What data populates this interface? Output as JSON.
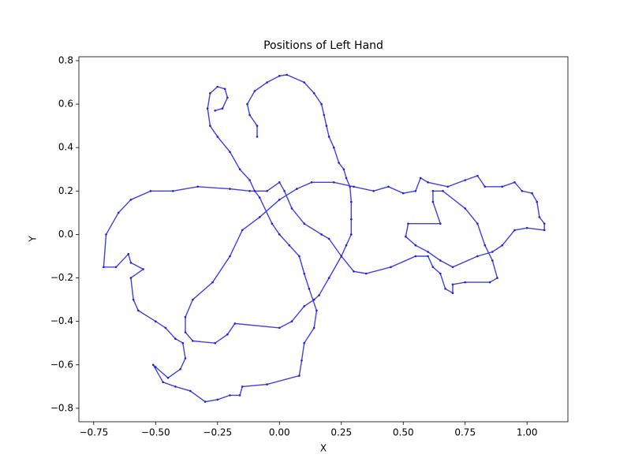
{
  "chart_data": {
    "type": "line",
    "title": "Positions of Left Hand",
    "x_label": "X",
    "y_label": "Y",
    "xlim": [
      -0.81,
      1.165
    ],
    "ylim": [
      -0.862,
      0.818
    ],
    "xticks": [
      {
        "value": -0.75,
        "label": "−0.75"
      },
      {
        "value": -0.5,
        "label": "−0.50"
      },
      {
        "value": -0.25,
        "label": "−0.25"
      },
      {
        "value": 0,
        "label": "0.00"
      },
      {
        "value": 0.25,
        "label": "0.25"
      },
      {
        "value": 0.5,
        "label": "0.50"
      },
      {
        "value": 0.75,
        "label": "0.75"
      },
      {
        "value": 1,
        "label": "1.00"
      }
    ],
    "yticks": [
      {
        "value": -0.8,
        "label": "−0.8"
      },
      {
        "value": -0.6,
        "label": "−0.6"
      },
      {
        "value": -0.4,
        "label": "−0.4"
      },
      {
        "value": -0.2,
        "label": "−0.2"
      },
      {
        "value": 0,
        "label": "0.0"
      },
      {
        "value": 0.2,
        "label": "0.2"
      },
      {
        "value": 0.4,
        "label": "0.4"
      },
      {
        "value": 0.6,
        "label": "0.6"
      },
      {
        "value": 0.8,
        "label": "0.8"
      }
    ],
    "color": "#1f1fdf",
    "x": [
      -0.09,
      -0.09,
      -0.12,
      -0.13,
      -0.1,
      -0.05,
      0.0,
      0.03,
      0.1,
      0.14,
      0.17,
      0.18,
      0.19,
      0.2,
      0.22,
      0.24,
      0.26,
      0.27,
      0.285,
      0.29,
      0.29,
      0.29,
      0.27,
      0.25,
      0.2,
      0.16,
      0.14,
      0.1,
      0.05,
      0.0,
      -0.18,
      -0.21,
      -0.26,
      -0.35,
      -0.38,
      -0.38,
      -0.35,
      -0.27,
      -0.2,
      -0.15,
      -0.08,
      0.0,
      0.07,
      0.13,
      0.22,
      0.3,
      0.38,
      0.44,
      0.5,
      0.55,
      0.57,
      0.6,
      0.68,
      0.75,
      0.8,
      0.83,
      0.9,
      0.95,
      0.98,
      1.02,
      1.04,
      1.05,
      1.07,
      1.07,
      1.0,
      0.95,
      0.9,
      0.86,
      0.8,
      0.7,
      0.65,
      0.6,
      0.55,
      0.51,
      0.52,
      0.65,
      0.62,
      0.62,
      0.66,
      0.75,
      0.8,
      0.83,
      0.86,
      0.88,
      0.85,
      0.75,
      0.7,
      0.7,
      0.67,
      0.65,
      0.62,
      0.6,
      0.55,
      0.45,
      0.35,
      0.3,
      0.25,
      0.2,
      0.17,
      0.1,
      0.05,
      0.02,
      0.0,
      -0.05,
      -0.12,
      -0.2,
      -0.33,
      -0.43,
      -0.52,
      -0.6,
      -0.65,
      -0.7,
      -0.71,
      -0.66,
      -0.61,
      -0.6,
      -0.55,
      -0.6,
      -0.59,
      -0.57,
      -0.5,
      -0.46,
      -0.42,
      -0.39,
      -0.38,
      -0.4,
      -0.45,
      -0.5,
      -0.51,
      -0.47,
      -0.42,
      -0.36,
      -0.3,
      -0.25,
      -0.2,
      -0.16,
      -0.15,
      -0.05,
      0.08,
      0.09,
      0.1,
      0.14,
      0.15,
      0.12,
      0.1,
      0.08,
      0.04,
      0.0,
      -0.03,
      -0.08,
      -0.1,
      -0.12,
      -0.16,
      -0.2,
      -0.25,
      -0.28,
      -0.29,
      -0.28,
      -0.25,
      -0.22,
      -0.21,
      -0.23,
      -0.26
    ],
    "values": [
      0.45,
      0.5,
      0.55,
      0.6,
      0.66,
      0.7,
      0.73,
      0.735,
      0.7,
      0.65,
      0.6,
      0.55,
      0.5,
      0.45,
      0.4,
      0.33,
      0.3,
      0.26,
      0.22,
      0.15,
      0.07,
      0.0,
      -0.05,
      -0.1,
      -0.2,
      -0.28,
      -0.3,
      -0.33,
      -0.4,
      -0.43,
      -0.41,
      -0.46,
      -0.5,
      -0.49,
      -0.45,
      -0.38,
      -0.3,
      -0.22,
      -0.1,
      0.02,
      0.08,
      0.16,
      0.21,
      0.24,
      0.24,
      0.22,
      0.2,
      0.22,
      0.19,
      0.2,
      0.26,
      0.24,
      0.22,
      0.25,
      0.27,
      0.22,
      0.22,
      0.24,
      0.2,
      0.19,
      0.15,
      0.08,
      0.05,
      0.02,
      0.03,
      0.02,
      -0.05,
      -0.08,
      -0.1,
      -0.15,
      -0.12,
      -0.08,
      -0.05,
      -0.01,
      0.05,
      0.05,
      0.15,
      0.2,
      0.2,
      0.12,
      0.05,
      -0.05,
      -0.12,
      -0.2,
      -0.22,
      -0.22,
      -0.23,
      -0.27,
      -0.25,
      -0.18,
      -0.15,
      -0.1,
      -0.1,
      -0.15,
      -0.18,
      -0.17,
      -0.1,
      -0.02,
      0.0,
      0.05,
      0.12,
      0.2,
      0.24,
      0.2,
      0.2,
      0.21,
      0.22,
      0.2,
      0.2,
      0.16,
      0.1,
      0.0,
      -0.15,
      -0.15,
      -0.09,
      -0.13,
      -0.16,
      -0.2,
      -0.3,
      -0.35,
      -0.4,
      -0.43,
      -0.48,
      -0.5,
      -0.57,
      -0.62,
      -0.66,
      -0.61,
      -0.6,
      -0.68,
      -0.7,
      -0.72,
      -0.77,
      -0.76,
      -0.74,
      -0.74,
      -0.7,
      -0.69,
      -0.65,
      -0.58,
      -0.5,
      -0.43,
      -0.35,
      -0.25,
      -0.18,
      -0.1,
      -0.05,
      0.0,
      0.05,
      0.17,
      0.2,
      0.25,
      0.3,
      0.38,
      0.45,
      0.5,
      0.58,
      0.65,
      0.68,
      0.67,
      0.63,
      0.58,
      0.57
    ]
  }
}
